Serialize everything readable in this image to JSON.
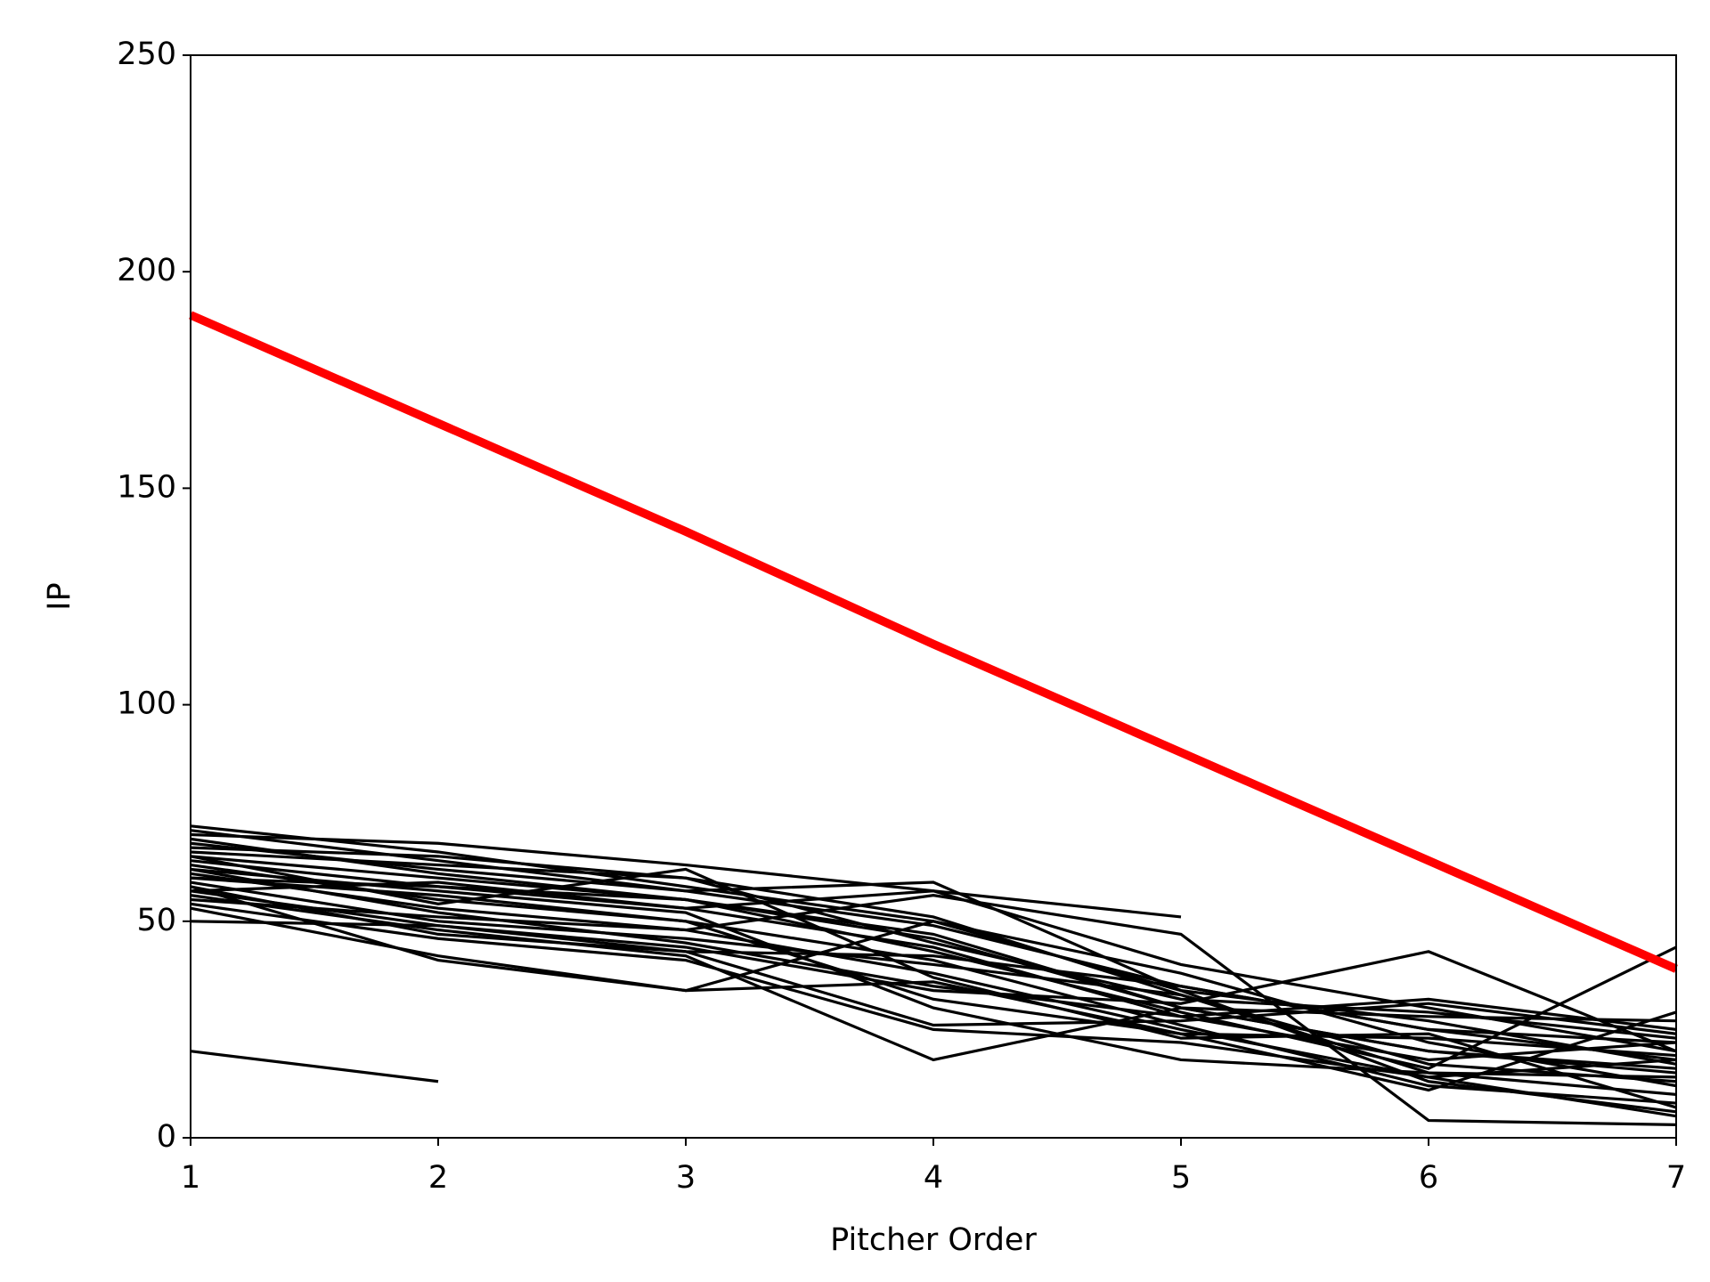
{
  "chart_data": {
    "type": "line",
    "xlabel": "Pitcher Order",
    "ylabel": "IP",
    "x": [
      1,
      2,
      3,
      4,
      5,
      6,
      7
    ],
    "xlim": [
      1,
      7
    ],
    "xticks": [
      1,
      2,
      3,
      4,
      5,
      6,
      7
    ],
    "ylim": [
      0,
      250
    ],
    "yticks": [
      0,
      50,
      100,
      150,
      200,
      250
    ],
    "grid": false,
    "series": [
      {
        "color": "#000000",
        "linewidth": 2,
        "values": [
          72,
          66,
          58,
          50,
          38,
          22,
          12
        ]
      },
      {
        "color": "#000000",
        "linewidth": 2,
        "values": [
          70,
          68,
          63,
          57,
          40,
          30,
          20
        ]
      },
      {
        "color": "#000000",
        "linewidth": 2,
        "values": [
          68,
          62,
          57,
          49,
          35,
          25,
          18
        ]
      },
      {
        "color": "#000000",
        "linewidth": 2,
        "values": [
          66,
          63,
          60,
          51,
          33,
          15,
          10
        ]
      },
      {
        "color": "#000000",
        "linewidth": 2,
        "values": [
          65,
          60,
          55,
          46,
          30,
          20,
          15
        ]
      },
      {
        "color": "#000000",
        "linewidth": 2,
        "values": [
          64,
          58,
          53,
          44,
          28,
          18,
          22
        ]
      },
      {
        "color": "#000000",
        "linewidth": 2,
        "values": [
          63,
          55,
          50,
          41,
          26,
          12,
          8
        ]
      },
      {
        "color": "#000000",
        "linewidth": 2,
        "values": [
          62,
          52,
          45,
          35,
          28,
          32,
          25
        ]
      },
      {
        "color": "#000000",
        "linewidth": 2,
        "values": [
          61,
          53,
          48,
          38,
          25,
          14,
          5
        ]
      },
      {
        "color": "#000000",
        "linewidth": 2,
        "values": [
          60,
          58,
          55,
          47,
          30,
          28,
          27
        ]
      },
      {
        "color": "#000000",
        "linewidth": 2,
        "values": [
          59,
          50,
          46,
          40,
          33,
          17,
          13
        ]
      },
      {
        "color": "#000000",
        "linewidth": 2,
        "values": [
          58,
          47,
          43,
          26,
          27,
          31,
          24
        ]
      },
      {
        "color": "#000000",
        "linewidth": 2,
        "values": [
          57,
          49,
          44,
          34,
          31,
          43,
          20
        ]
      },
      {
        "color": "#000000",
        "linewidth": 2,
        "values": [
          56,
          48,
          42,
          18,
          30,
          20,
          16
        ]
      },
      {
        "color": "#000000",
        "linewidth": 2,
        "values": [
          55,
          51,
          48,
          56,
          47,
          4,
          3
        ]
      },
      {
        "color": "#000000",
        "linewidth": 2,
        "values": [
          54,
          46,
          41,
          25,
          22,
          14,
          18
        ]
      },
      {
        "color": "#000000",
        "linewidth": 2,
        "values": [
          53,
          42,
          34,
          36,
          24,
          11,
          29
        ]
      },
      {
        "color": "#000000",
        "linewidth": 2,
        "values": [
          50,
          49,
          43,
          42,
          35,
          25,
          22
        ]
      },
      {
        "color": "#000000",
        "linewidth": 2,
        "values": [
          69,
          61,
          55,
          43,
          29,
          16,
          44
        ]
      },
      {
        "color": "#000000",
        "linewidth": 2,
        "values": [
          67,
          65,
          60,
          45,
          32,
          29,
          23
        ]
      },
      {
        "color": "#000000",
        "linewidth": 2,
        "values": [
          71,
          64,
          57,
          59,
          34,
          13,
          6
        ]
      },
      {
        "color": "#000000",
        "linewidth": 2,
        "values": [
          62,
          57,
          52,
          30,
          18,
          15,
          14
        ]
      },
      {
        "color": "#000000",
        "linewidth": 2,
        "values": [
          60,
          56,
          50,
          32,
          24,
          23,
          19
        ]
      },
      {
        "color": "#000000",
        "linewidth": 2,
        "values": [
          65,
          54,
          62,
          37,
          23,
          24,
          7
        ]
      },
      {
        "color": "#000000",
        "linewidth": 2,
        "values": [
          58,
          41,
          34,
          50,
          34,
          27,
          17
        ]
      },
      {
        "color": "#000000",
        "linewidth": 2,
        "values": [
          57,
          59,
          53,
          57,
          51,
          null,
          null
        ]
      },
      {
        "color": "#000000",
        "linewidth": 2,
        "values": [
          20,
          13,
          null,
          null,
          null,
          null,
          null
        ]
      },
      {
        "color": "#ff0000",
        "linewidth": 6,
        "values": [
          190,
          165,
          140,
          114,
          89,
          64,
          39
        ]
      }
    ]
  }
}
